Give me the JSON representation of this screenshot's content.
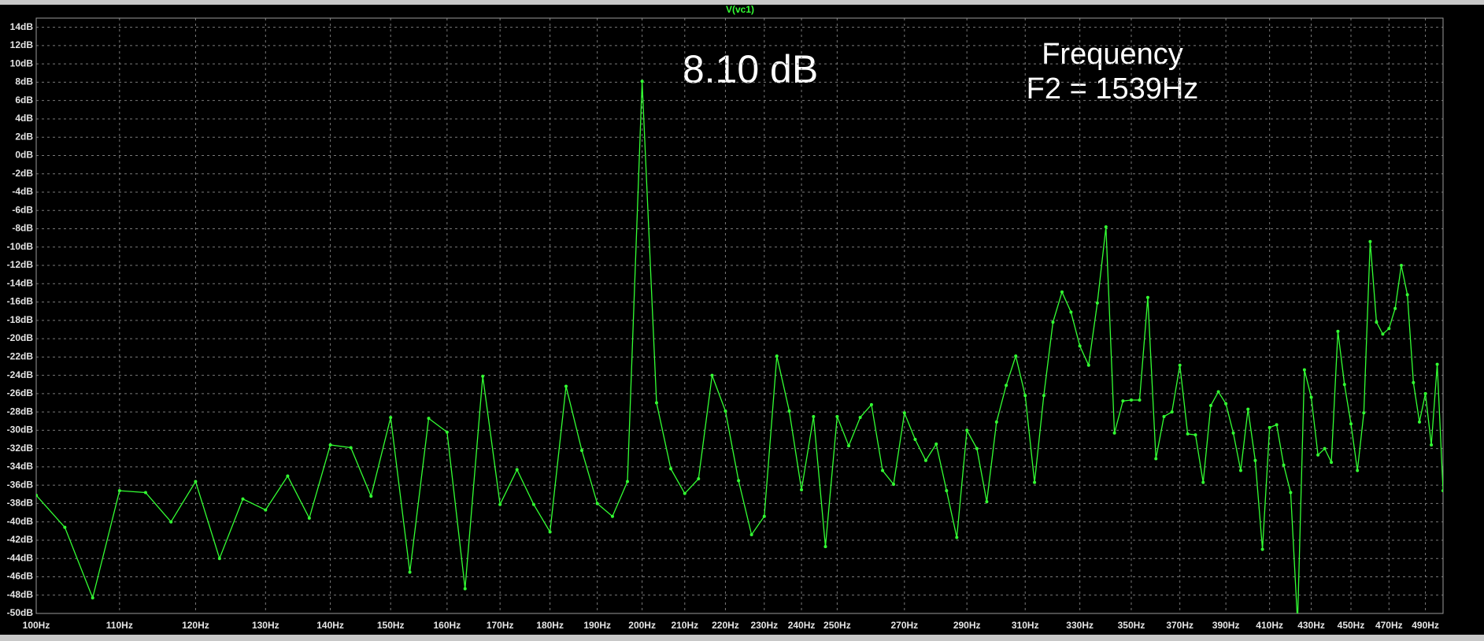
{
  "chart_data": {
    "type": "line",
    "x": [
      100,
      103.33,
      106.67,
      110,
      113.33,
      116.67,
      120,
      123.33,
      126.67,
      130,
      133.33,
      136.67,
      140,
      143.33,
      146.67,
      150,
      153.33,
      156.67,
      160,
      163.33,
      166.67,
      170,
      173.33,
      176.67,
      180,
      183.33,
      186.67,
      190,
      193.33,
      196.67,
      200,
      203.33,
      206.67,
      210,
      213.33,
      216.67,
      220,
      223.33,
      226.67,
      230,
      233.33,
      236.67,
      240,
      243.33,
      246.67,
      250,
      253.33,
      256.67,
      260,
      263.33,
      266.67,
      270,
      273.33,
      276.67,
      280,
      283.33,
      286.67,
      290,
      293.33,
      296.67,
      300,
      303.33,
      306.67,
      310,
      313.33,
      316.67,
      320,
      323.33,
      326.67,
      330,
      333.33,
      336.67,
      340,
      343.33,
      346.67,
      350,
      353.33,
      356.67,
      360,
      363.33,
      366.67,
      370,
      373.33,
      376.67,
      380,
      383.33,
      386.67,
      390,
      393.33,
      396.67,
      400,
      403.33,
      406.67,
      410,
      413.33,
      416.67,
      420,
      423.33,
      426.67,
      430,
      433.33,
      436.67,
      440,
      443.33,
      446.67,
      450,
      453.33,
      456.67,
      460,
      463.33,
      466.67,
      470,
      473.33,
      476.67,
      480,
      483.33,
      486.67,
      490,
      493.33,
      496.67,
      500
    ],
    "series": [
      {
        "name": "V(vc1)",
        "color": "#33ff33",
        "values": [
          -37.1,
          -40.6,
          -48.3,
          -36.6,
          -36.8,
          -40.0,
          -35.6,
          -44.0,
          -37.5,
          -38.7,
          -35.0,
          -39.6,
          -31.6,
          -31.9,
          -37.2,
          -28.6,
          -45.5,
          -28.7,
          -30.2,
          -47.3,
          -24.1,
          -38.1,
          -34.3,
          -38.1,
          -41.1,
          -25.2,
          -32.2,
          -38.0,
          -39.4,
          -35.6,
          8.1,
          -27.0,
          -34.2,
          -36.9,
          -35.3,
          -24.0,
          -27.9,
          -35.5,
          -41.4,
          -39.4,
          -21.9,
          -27.9,
          -36.5,
          -28.5,
          -42.7,
          -28.5,
          -31.7,
          -28.6,
          -27.2,
          -34.4,
          -35.9,
          -28.1,
          -31.0,
          -33.3,
          -31.5,
          -36.6,
          -41.7,
          -30.0,
          -32.0,
          -37.8,
          -29.1,
          -25.1,
          -21.9,
          -26.2,
          -35.7,
          -26.2,
          -18.2,
          -14.9,
          -17.1,
          -20.8,
          -22.9,
          -16.1,
          -7.8,
          -30.3,
          -26.8,
          -26.7,
          -26.7,
          -15.5,
          -33.1,
          -28.5,
          -28.0,
          -22.9,
          -30.4,
          -30.5,
          -35.7,
          -27.3,
          -25.8,
          -27.1,
          -30.3,
          -34.4,
          -27.7,
          -33.3,
          -43.0,
          -29.7,
          -29.4,
          -33.8,
          -36.8,
          -51,
          -23.4,
          -26.4,
          -32.7,
          -32.0,
          -33.5,
          -19.2,
          -25.0,
          -29.3,
          -34.4,
          -28.1,
          -9.4,
          -18.2,
          -19.5,
          -18.9,
          -16.7,
          -12.0,
          -15.2,
          -24.8,
          -29.1,
          -26.0,
          -31.6,
          -22.8,
          -36.6
        ]
      }
    ],
    "xlim": [
      100,
      500
    ],
    "xscale": "log",
    "xticks": [
      {
        "value": 100,
        "label": "100Hz"
      },
      {
        "value": 110,
        "label": "110Hz"
      },
      {
        "value": 120,
        "label": "120Hz"
      },
      {
        "value": 130,
        "label": "130Hz"
      },
      {
        "value": 140,
        "label": "140Hz"
      },
      {
        "value": 150,
        "label": "150Hz"
      },
      {
        "value": 160,
        "label": "160Hz"
      },
      {
        "value": 170,
        "label": "170Hz"
      },
      {
        "value": 180,
        "label": "180Hz"
      },
      {
        "value": 190,
        "label": "190Hz"
      },
      {
        "value": 200,
        "label": "200Hz"
      },
      {
        "value": 210,
        "label": "210Hz"
      },
      {
        "value": 220,
        "label": "220Hz"
      },
      {
        "value": 230,
        "label": "230Hz"
      },
      {
        "value": 240,
        "label": "240Hz"
      },
      {
        "value": 250,
        "label": "250Hz"
      },
      {
        "value": 270,
        "label": "270Hz"
      },
      {
        "value": 290,
        "label": "290Hz"
      },
      {
        "value": 310,
        "label": "310Hz"
      },
      {
        "value": 330,
        "label": "330Hz"
      },
      {
        "value": 350,
        "label": "350Hz"
      },
      {
        "value": 370,
        "label": "370Hz"
      },
      {
        "value": 390,
        "label": "390Hz"
      },
      {
        "value": 410,
        "label": "410Hz"
      },
      {
        "value": 430,
        "label": "430Hz"
      },
      {
        "value": 450,
        "label": "450Hz"
      },
      {
        "value": 470,
        "label": "470Hz"
      },
      {
        "value": 490,
        "label": "490Hz"
      }
    ],
    "ylim": [
      -50,
      15
    ],
    "yticks": [
      {
        "value": 14,
        "label": "14dB"
      },
      {
        "value": 12,
        "label": "12dB"
      },
      {
        "value": 10,
        "label": "10dB"
      },
      {
        "value": 8,
        "label": "8dB"
      },
      {
        "value": 6,
        "label": "6dB"
      },
      {
        "value": 4,
        "label": "4dB"
      },
      {
        "value": 2,
        "label": "2dB"
      },
      {
        "value": 0,
        "label": "0dB"
      },
      {
        "value": -2,
        "label": "-2dB"
      },
      {
        "value": -4,
        "label": "-4dB"
      },
      {
        "value": -6,
        "label": "-6dB"
      },
      {
        "value": -8,
        "label": "-8dB"
      },
      {
        "value": -10,
        "label": "-10dB"
      },
      {
        "value": -12,
        "label": "-12dB"
      },
      {
        "value": -14,
        "label": "-14dB"
      },
      {
        "value": -16,
        "label": "-16dB"
      },
      {
        "value": -18,
        "label": "-18dB"
      },
      {
        "value": -20,
        "label": "-20dB"
      },
      {
        "value": -22,
        "label": "-22dB"
      },
      {
        "value": -24,
        "label": "-24dB"
      },
      {
        "value": -26,
        "label": "-26dB"
      },
      {
        "value": -28,
        "label": "-28dB"
      },
      {
        "value": -30,
        "label": "-30dB"
      },
      {
        "value": -32,
        "label": "-32dB"
      },
      {
        "value": -34,
        "label": "-34dB"
      },
      {
        "value": -36,
        "label": "-36dB"
      },
      {
        "value": -38,
        "label": "-38dB"
      },
      {
        "value": -40,
        "label": "-40dB"
      },
      {
        "value": -42,
        "label": "-42dB"
      },
      {
        "value": -44,
        "label": "-44dB"
      },
      {
        "value": -46,
        "label": "-46dB"
      },
      {
        "value": -48,
        "label": "-48dB"
      },
      {
        "value": -50,
        "label": "-50dB"
      }
    ],
    "grid": true,
    "annotations": [
      "8.10 dB",
      "Frequency",
      "F2 = 1539Hz"
    ]
  }
}
